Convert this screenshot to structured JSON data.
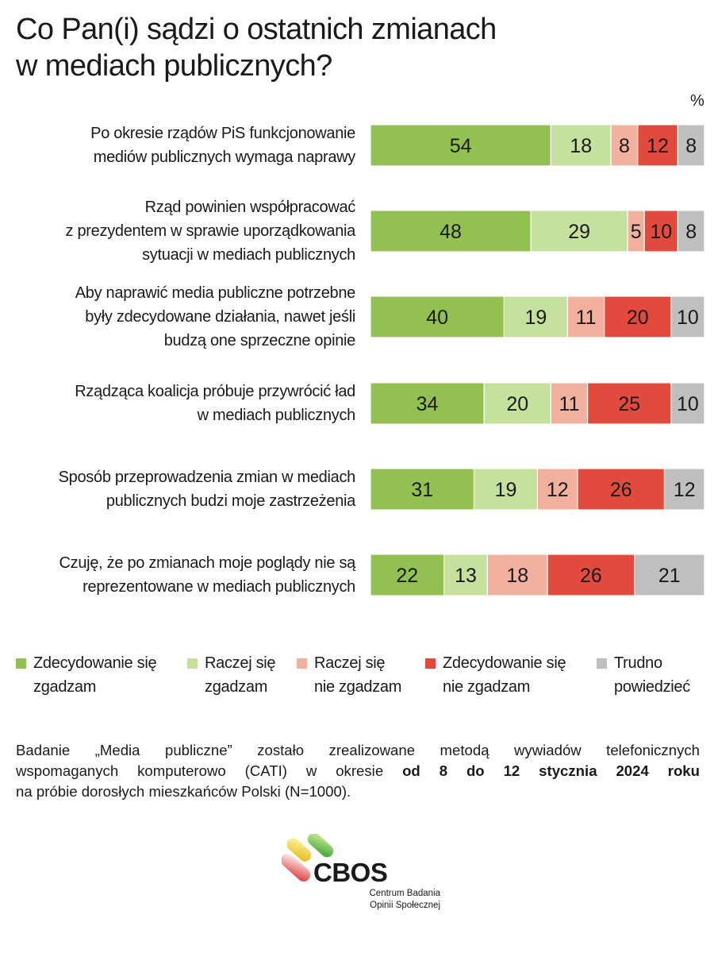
{
  "title": {
    "line1": "Co Pan(i) sądzi o ostatnich zmianach",
    "line2": "w mediach publicznych?"
  },
  "unit": "%",
  "colors": {
    "strongly_agree": "#92c051",
    "rather_agree": "#c6e09d",
    "rather_disagree": "#f2b09e",
    "strongly_disagree": "#e24a3d",
    "hard_to_say": "#bfbfbf"
  },
  "chart_data": {
    "type": "bar",
    "orientation": "horizontal",
    "stacked": true,
    "normalized": true,
    "value_unit": "%",
    "categories": [
      [
        "Po okresie rządów PiS funkcjonowanie",
        "mediów publicznych wymaga naprawy"
      ],
      [
        "Rząd powinien współpracować",
        "z prezydentem w sprawie uporządkowania",
        "sytuacji w mediach publicznych"
      ],
      [
        "Aby naprawić media publiczne potrzebne",
        "były zdecydowane działania, nawet jeśli",
        "budzą one sprzeczne opinie"
      ],
      [
        "Rządząca koalicja próbuje przywrócić ład",
        "w mediach publicznych"
      ],
      [
        "Sposób przeprowadzenia zmian w mediach",
        "publicznych budzi moje zastrzeżenia"
      ],
      [
        "Czuję, że po zmianach moje poglądy nie są",
        "reprezentowane w mediach publicznych"
      ]
    ],
    "series": [
      {
        "key": "strongly_agree",
        "name": [
          "Zdecydowanie się",
          "zgadzam"
        ],
        "values": [
          54,
          48,
          40,
          34,
          31,
          22
        ]
      },
      {
        "key": "rather_agree",
        "name": [
          "Raczej się",
          "zgadzam"
        ],
        "values": [
          18,
          29,
          19,
          20,
          19,
          13
        ]
      },
      {
        "key": "rather_disagree",
        "name": [
          "Raczej się",
          "nie zgadzam"
        ],
        "values": [
          8,
          5,
          11,
          11,
          12,
          18
        ]
      },
      {
        "key": "strongly_disagree",
        "name": [
          "Zdecydowanie się",
          "nie zgadzam"
        ],
        "values": [
          12,
          10,
          20,
          25,
          26,
          26
        ]
      },
      {
        "key": "hard_to_say",
        "name": [
          "Trudno",
          "powiedzieć"
        ],
        "values": [
          8,
          8,
          10,
          10,
          12,
          21
        ]
      }
    ],
    "legend_position": "bottom",
    "grid": false
  },
  "footnote": {
    "line1": "Badanie „Media publiczne” zostało zrealizowane metodą wywiadów telefonicznych",
    "line2_start": "wspomaganych komputerowo (CATI) w okresie ",
    "line2_bold": "od 8 do 12 stycznia 2024 roku",
    "line3": "na próbie dorosłych mieszkańców Polski (N=1000)."
  },
  "logo": {
    "wordmark": "CBOS",
    "line1": "Centrum Badania",
    "line2": "Opinii Społecznej"
  }
}
